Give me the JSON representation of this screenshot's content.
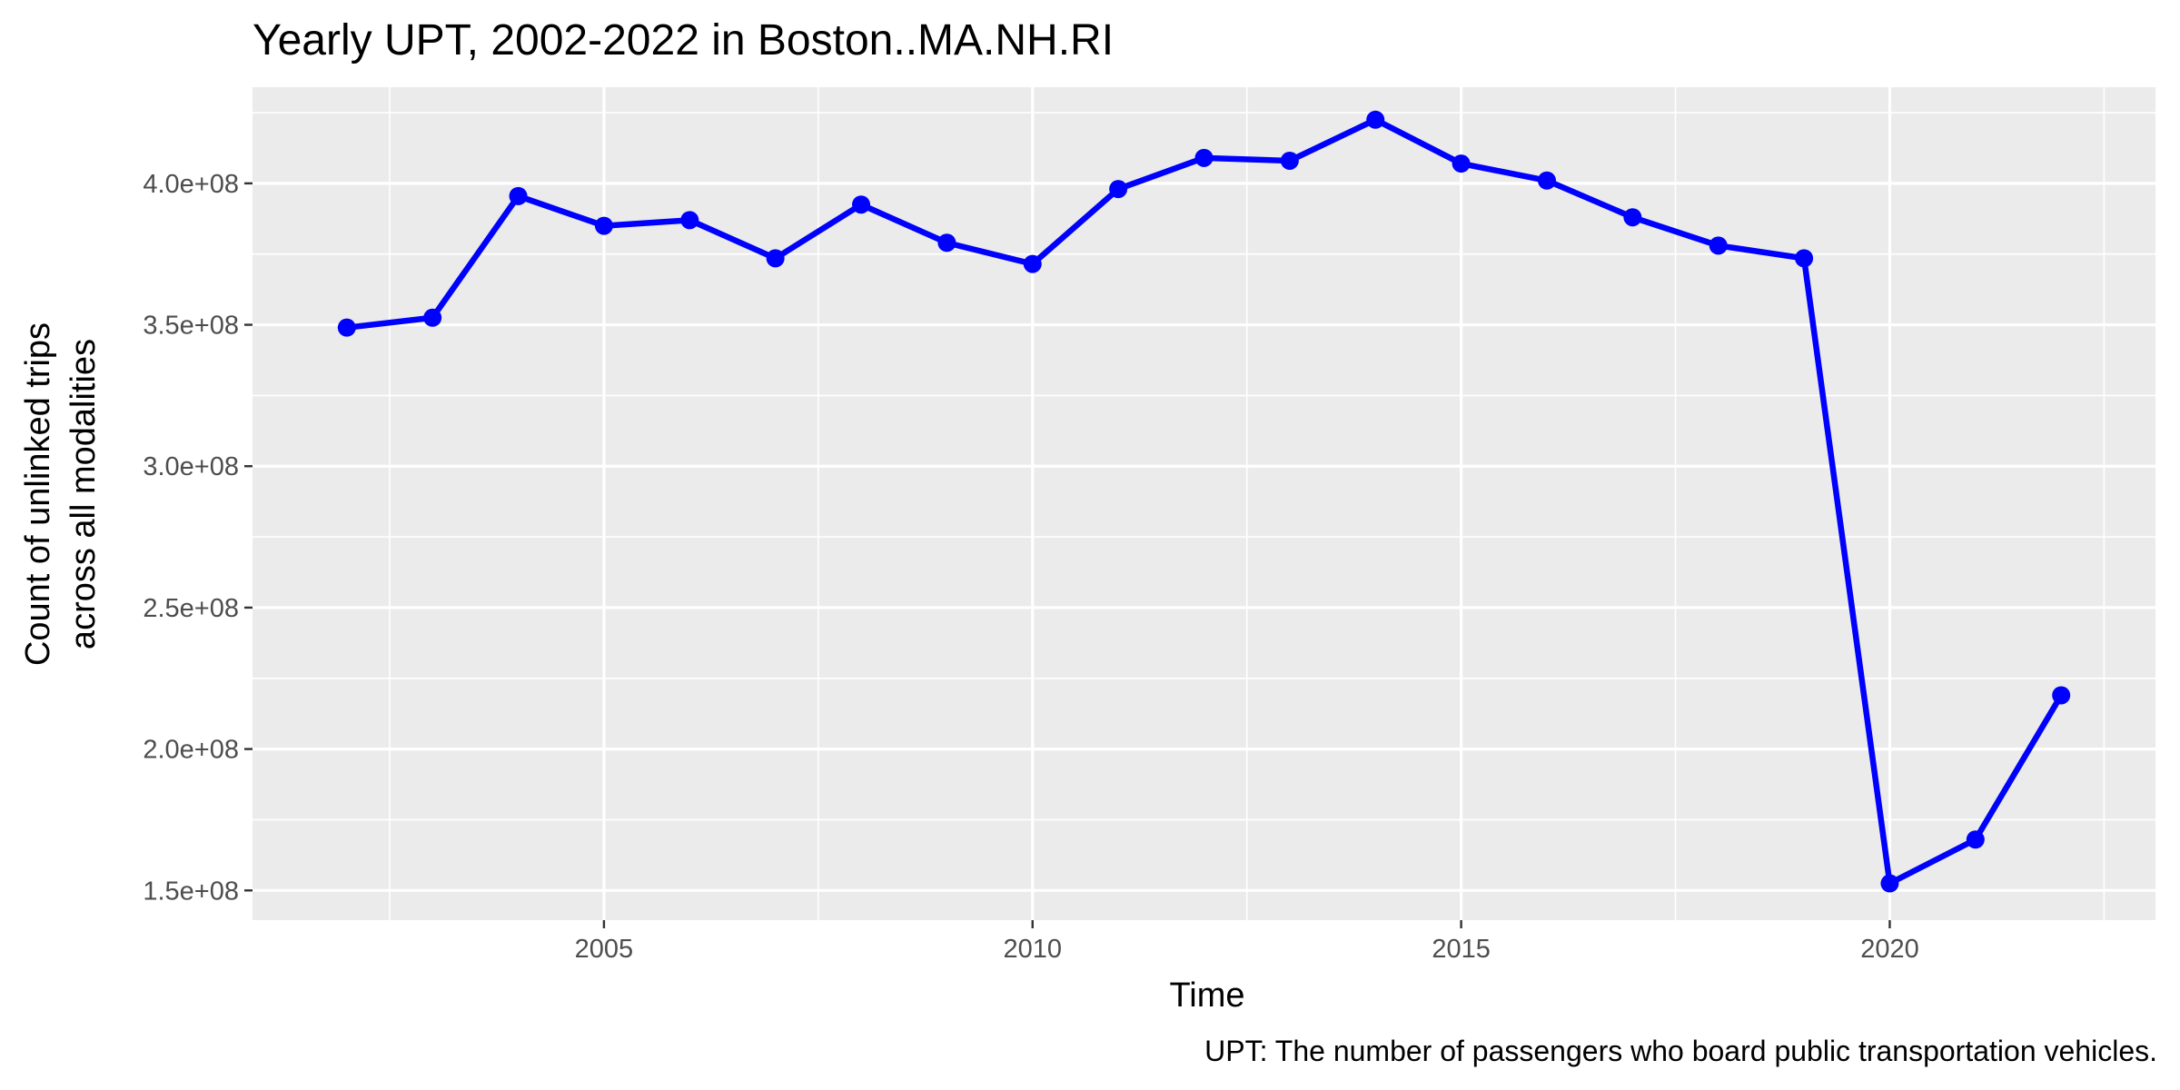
{
  "chart_data": {
    "type": "line",
    "title": "Yearly UPT, 2002-2022 in Boston..MA.NH.RI",
    "xlabel": "Time",
    "ylabel_lines": [
      "Count of unlinked trips",
      "across all modalities"
    ],
    "caption": "UPT: The number of passengers who board public transportation vehicles.",
    "xlim": [
      2000.9,
      2023.1
    ],
    "ylim": [
      139500000,
      434000000
    ],
    "x_ticks": [
      2005,
      2010,
      2015,
      2020
    ],
    "x_tick_labels": [
      "2005",
      "2010",
      "2015",
      "2020"
    ],
    "y_ticks": [
      150000000,
      200000000,
      250000000,
      300000000,
      350000000,
      400000000
    ],
    "y_tick_labels": [
      "1.5e+08",
      "2.0e+08",
      "2.5e+08",
      "3.0e+08",
      "3.5e+08",
      "4.0e+08"
    ],
    "grid": true,
    "series": [
      {
        "color": "#0000ff",
        "x": [
          2002,
          2003,
          2004,
          2005,
          2006,
          2007,
          2008,
          2009,
          2010,
          2011,
          2012,
          2013,
          2014,
          2015,
          2016,
          2017,
          2018,
          2019,
          2020,
          2021,
          2022
        ],
        "values": [
          349000000,
          352500000,
          395500000,
          385000000,
          387000000,
          373500000,
          392500000,
          379000000,
          371500000,
          398000000,
          409000000,
          408000000,
          422500000,
          407000000,
          401000000,
          388000000,
          378000000,
          373500000,
          152500000,
          168000000,
          219000000
        ]
      }
    ]
  }
}
